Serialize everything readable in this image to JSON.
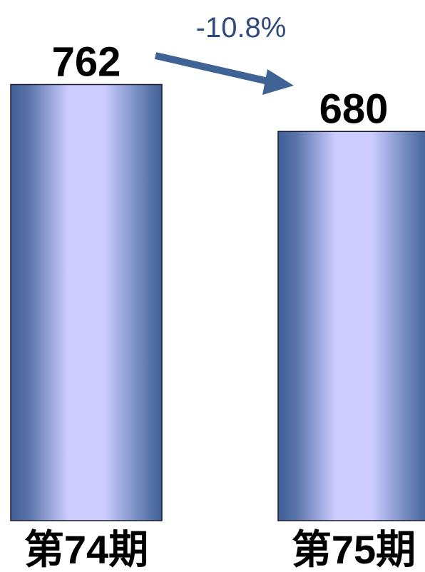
{
  "chart_data": {
    "type": "bar",
    "categories": [
      "第74期",
      "第75期"
    ],
    "values": [
      762,
      680
    ],
    "data_labels": [
      "762",
      "680"
    ],
    "annotation": "-10.8%",
    "ylim": [
      0,
      810
    ],
    "grid": false,
    "legend": "none"
  },
  "colors": {
    "bar_edge": "#3f5f96",
    "bar_center": "#ccccff",
    "arrow": "#3f6394",
    "annotation_text": "#2e4a7d"
  }
}
